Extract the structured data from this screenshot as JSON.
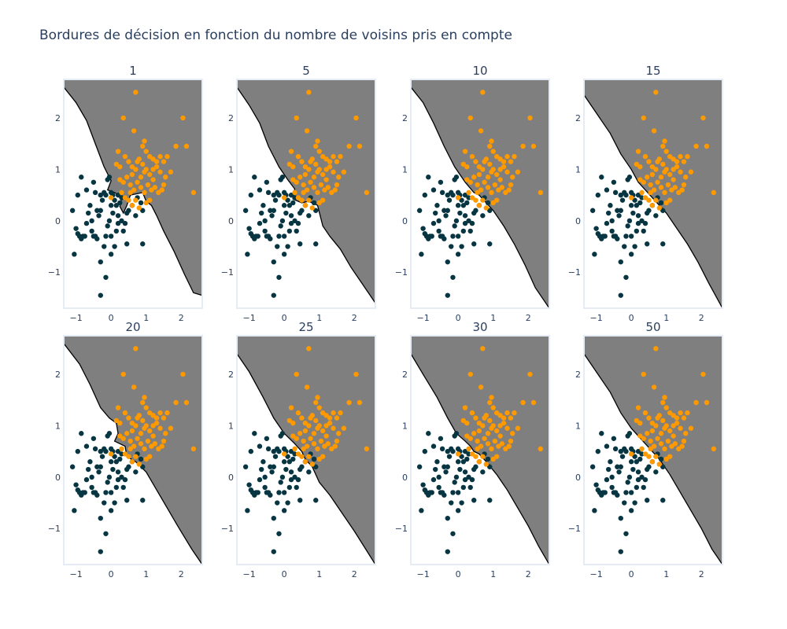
{
  "title": "Bordures de décision en fonction du nombre de voisins pris en compte",
  "colors": {
    "region": "#7f7f7f",
    "boundary": "#000000",
    "class0": "#073642",
    "class1": "#ff9900",
    "axis_frame": "#e5ecf6",
    "text": "#2a3f5f"
  },
  "chart_data": {
    "type": "scatter",
    "xlim": [
      -1.35,
      2.6
    ],
    "ylim": [
      -1.7,
      2.75
    ],
    "x_ticks": [
      -1,
      0,
      1,
      2
    ],
    "y_ticks": [
      -1,
      0,
      1,
      2
    ],
    "x_tick_labels": [
      "−1",
      "0",
      "1",
      "2"
    ],
    "y_tick_labels": [
      "−1",
      "0",
      "1",
      "2"
    ],
    "grid": false,
    "panels": [
      {
        "title": "1",
        "k": 1,
        "boundary": [
          [
            -1.35,
            2.6
          ],
          [
            -1.0,
            2.3
          ],
          [
            -0.7,
            1.95
          ],
          [
            -0.45,
            1.5
          ],
          [
            -0.2,
            1.05
          ],
          [
            0.0,
            0.78
          ],
          [
            -0.1,
            0.6
          ],
          [
            0.1,
            0.55
          ],
          [
            0.3,
            0.45
          ],
          [
            0.25,
            0.28
          ],
          [
            0.35,
            0.15
          ],
          [
            0.45,
            0.3
          ],
          [
            0.55,
            0.5
          ],
          [
            0.9,
            0.55
          ],
          [
            1.0,
            0.38
          ],
          [
            1.15,
            0.3
          ],
          [
            1.3,
            0.1
          ],
          [
            1.5,
            -0.2
          ],
          [
            1.8,
            -0.6
          ],
          [
            2.1,
            -1.05
          ],
          [
            2.35,
            -1.4
          ],
          [
            2.6,
            -1.45
          ]
        ]
      },
      {
        "title": "5",
        "k": 5,
        "boundary": [
          [
            -1.35,
            2.6
          ],
          [
            -1.0,
            2.25
          ],
          [
            -0.7,
            1.9
          ],
          [
            -0.45,
            1.45
          ],
          [
            -0.15,
            1.05
          ],
          [
            0.1,
            0.8
          ],
          [
            0.3,
            0.62
          ],
          [
            0.25,
            0.42
          ],
          [
            0.5,
            0.35
          ],
          [
            0.7,
            0.38
          ],
          [
            0.95,
            0.3
          ],
          [
            1.1,
            -0.1
          ],
          [
            1.3,
            -0.3
          ],
          [
            1.6,
            -0.55
          ],
          [
            1.9,
            -0.9
          ],
          [
            2.2,
            -1.2
          ],
          [
            2.6,
            -1.6
          ]
        ]
      },
      {
        "title": "10",
        "k": 10,
        "boundary": [
          [
            -1.35,
            2.6
          ],
          [
            -1.0,
            2.3
          ],
          [
            -0.7,
            1.9
          ],
          [
            -0.4,
            1.45
          ],
          [
            -0.1,
            1.05
          ],
          [
            0.2,
            0.75
          ],
          [
            0.45,
            0.55
          ],
          [
            0.6,
            0.5
          ],
          [
            0.8,
            0.35
          ],
          [
            1.0,
            0.2
          ],
          [
            1.3,
            -0.1
          ],
          [
            1.6,
            -0.45
          ],
          [
            1.9,
            -0.85
          ],
          [
            2.2,
            -1.3
          ],
          [
            2.6,
            -1.7
          ]
        ]
      },
      {
        "title": "15",
        "k": 15,
        "boundary": [
          [
            -1.35,
            2.45
          ],
          [
            -1.0,
            2.1
          ],
          [
            -0.6,
            1.7
          ],
          [
            -0.3,
            1.3
          ],
          [
            0.0,
            1.0
          ],
          [
            0.2,
            0.75
          ],
          [
            0.4,
            0.6
          ],
          [
            0.6,
            0.45
          ],
          [
            0.8,
            0.3
          ],
          [
            1.0,
            0.15
          ],
          [
            1.3,
            -0.15
          ],
          [
            1.6,
            -0.45
          ],
          [
            1.9,
            -0.8
          ],
          [
            2.2,
            -1.2
          ],
          [
            2.6,
            -1.7
          ]
        ]
      },
      {
        "title": "20",
        "k": 20,
        "boundary": [
          [
            -1.35,
            2.6
          ],
          [
            -0.9,
            2.2
          ],
          [
            -0.6,
            1.8
          ],
          [
            -0.3,
            1.35
          ],
          [
            -0.05,
            1.15
          ],
          [
            0.15,
            1.05
          ],
          [
            0.2,
            0.85
          ],
          [
            0.1,
            0.7
          ],
          [
            0.4,
            0.6
          ],
          [
            0.45,
            0.4
          ],
          [
            0.7,
            0.3
          ],
          [
            1.0,
            0.1
          ],
          [
            1.3,
            -0.25
          ],
          [
            1.6,
            -0.6
          ],
          [
            1.9,
            -0.95
          ],
          [
            2.3,
            -1.4
          ],
          [
            2.6,
            -1.7
          ]
        ]
      },
      {
        "title": "25",
        "k": 25,
        "boundary": [
          [
            -1.35,
            2.4
          ],
          [
            -1.0,
            2.05
          ],
          [
            -0.6,
            1.55
          ],
          [
            -0.3,
            1.15
          ],
          [
            0.0,
            0.85
          ],
          [
            0.3,
            0.65
          ],
          [
            0.5,
            0.5
          ],
          [
            0.6,
            0.35
          ],
          [
            0.8,
            0.2
          ],
          [
            1.0,
            -0.1
          ],
          [
            1.3,
            -0.35
          ],
          [
            1.6,
            -0.65
          ],
          [
            2.0,
            -1.05
          ],
          [
            2.6,
            -1.7
          ]
        ]
      },
      {
        "title": "30",
        "k": 30,
        "boundary": [
          [
            -1.35,
            2.4
          ],
          [
            -1.0,
            2.0
          ],
          [
            -0.6,
            1.55
          ],
          [
            -0.3,
            1.15
          ],
          [
            -0.05,
            0.85
          ],
          [
            0.2,
            0.7
          ],
          [
            0.35,
            0.6
          ],
          [
            0.45,
            0.5
          ],
          [
            0.6,
            0.45
          ],
          [
            0.8,
            0.3
          ],
          [
            1.1,
            0.05
          ],
          [
            1.4,
            -0.25
          ],
          [
            1.7,
            -0.6
          ],
          [
            2.0,
            -0.95
          ],
          [
            2.3,
            -1.35
          ],
          [
            2.6,
            -1.7
          ]
        ]
      },
      {
        "title": "50",
        "k": 50,
        "boundary": [
          [
            -1.35,
            2.4
          ],
          [
            -1.0,
            2.05
          ],
          [
            -0.6,
            1.65
          ],
          [
            -0.3,
            1.25
          ],
          [
            0.0,
            0.95
          ],
          [
            0.2,
            0.8
          ],
          [
            0.4,
            0.65
          ],
          [
            0.6,
            0.5
          ],
          [
            0.8,
            0.35
          ],
          [
            1.1,
            0.05
          ],
          [
            1.4,
            -0.3
          ],
          [
            1.7,
            -0.65
          ],
          [
            2.0,
            -1.0
          ],
          [
            2.3,
            -1.4
          ],
          [
            2.6,
            -1.7
          ]
        ]
      }
    ],
    "series": [
      {
        "class": 0,
        "points": [
          [
            -1.05,
            -0.65
          ],
          [
            -1.1,
            0.2
          ],
          [
            -1.0,
            -0.15
          ],
          [
            -0.95,
            -0.25
          ],
          [
            -0.9,
            -0.3
          ],
          [
            -0.85,
            -0.35
          ],
          [
            -0.8,
            -0.3
          ],
          [
            -0.75,
            -0.3
          ],
          [
            -0.95,
            0.5
          ],
          [
            -0.85,
            0.85
          ],
          [
            -0.7,
            0.6
          ],
          [
            -0.6,
            0.3
          ],
          [
            -0.55,
            -0.2
          ],
          [
            -0.5,
            -0.3
          ],
          [
            -0.45,
            -0.3
          ],
          [
            -0.4,
            0.2
          ],
          [
            -0.35,
            0.1
          ],
          [
            -0.3,
            0.2
          ],
          [
            -0.25,
            0.4
          ],
          [
            -0.3,
            -0.8
          ],
          [
            -0.4,
            -0.35
          ],
          [
            -0.3,
            -1.45
          ],
          [
            -0.15,
            -1.1
          ],
          [
            -0.2,
            -0.5
          ],
          [
            -0.15,
            -0.3
          ],
          [
            -0.1,
            -0.1
          ],
          [
            -0.05,
            0.0
          ],
          [
            0.0,
            0.3
          ],
          [
            0.0,
            0.55
          ],
          [
            0.05,
            0.5
          ],
          [
            0.1,
            0.4
          ],
          [
            0.15,
            0.3
          ],
          [
            0.15,
            -0.2
          ],
          [
            0.2,
            0.1
          ],
          [
            0.1,
            -0.5
          ],
          [
            0.0,
            -0.65
          ],
          [
            -0.05,
            0.85
          ],
          [
            -0.1,
            0.8
          ],
          [
            -0.2,
            0.55
          ],
          [
            -0.3,
            0.5
          ],
          [
            -0.45,
            0.55
          ],
          [
            -0.5,
            0.75
          ],
          [
            0.3,
            0.45
          ],
          [
            0.35,
            -0.2
          ],
          [
            0.45,
            -0.45
          ],
          [
            0.2,
            0.5
          ],
          [
            0.25,
            0.35
          ],
          [
            0.5,
            0.2
          ],
          [
            0.6,
            0.3
          ],
          [
            0.7,
            0.1
          ],
          [
            0.9,
            0.2
          ],
          [
            0.85,
            0.35
          ],
          [
            0.75,
            0.45
          ],
          [
            0.2,
            -0.05
          ],
          [
            -0.15,
            0.5
          ],
          [
            -0.65,
            0.15
          ],
          [
            -0.7,
            -0.05
          ],
          [
            -0.55,
            0.0
          ],
          [
            0.05,
            0.15
          ],
          [
            0.0,
            -0.3
          ],
          [
            0.3,
            0.0
          ],
          [
            0.45,
            0.15
          ],
          [
            0.4,
            -0.05
          ],
          [
            0.9,
            -0.45
          ]
        ]
      },
      {
        "class": 1,
        "points": [
          [
            0.7,
            2.5
          ],
          [
            0.35,
            2.0
          ],
          [
            2.05,
            2.0
          ],
          [
            0.65,
            1.75
          ],
          [
            0.95,
            1.55
          ],
          [
            0.9,
            1.45
          ],
          [
            1.0,
            1.35
          ],
          [
            1.1,
            1.25
          ],
          [
            1.2,
            1.2
          ],
          [
            1.3,
            1.15
          ],
          [
            1.4,
            1.25
          ],
          [
            1.5,
            1.15
          ],
          [
            1.85,
            1.45
          ],
          [
            2.15,
            1.45
          ],
          [
            0.2,
            1.35
          ],
          [
            0.15,
            1.1
          ],
          [
            0.25,
            1.05
          ],
          [
            0.4,
            1.25
          ],
          [
            0.5,
            1.15
          ],
          [
            0.6,
            1.05
          ],
          [
            0.7,
            1.0
          ],
          [
            0.8,
            1.2
          ],
          [
            0.9,
            1.1
          ],
          [
            1.0,
            1.0
          ],
          [
            1.1,
            0.9
          ],
          [
            1.2,
            0.8
          ],
          [
            1.3,
            1.05
          ],
          [
            1.4,
            0.95
          ],
          [
            1.55,
            0.85
          ],
          [
            1.7,
            0.95
          ],
          [
            0.35,
            0.75
          ],
          [
            0.45,
            0.85
          ],
          [
            0.55,
            0.7
          ],
          [
            0.65,
            0.6
          ],
          [
            0.75,
            0.75
          ],
          [
            0.85,
            0.65
          ],
          [
            0.95,
            0.55
          ],
          [
            1.05,
            0.7
          ],
          [
            1.15,
            0.6
          ],
          [
            1.35,
            0.55
          ],
          [
            1.45,
            0.6
          ],
          [
            2.35,
            0.55
          ],
          [
            0.3,
            0.55
          ],
          [
            0.4,
            0.45
          ],
          [
            0.5,
            0.4
          ],
          [
            0.6,
            0.3
          ],
          [
            0.8,
            0.25
          ],
          [
            0.55,
            0.55
          ],
          [
            1.0,
            0.35
          ],
          [
            1.1,
            0.4
          ],
          [
            0.25,
            0.8
          ],
          [
            0.6,
            0.9
          ],
          [
            1.2,
            1.0
          ],
          [
            0.75,
            1.15
          ],
          [
            0.95,
            0.95
          ],
          [
            0.85,
            0.85
          ],
          [
            1.25,
            0.65
          ],
          [
            1.5,
            0.7
          ],
          [
            0.0,
            0.45
          ],
          [
            1.6,
            1.25
          ],
          [
            0.7,
            0.4
          ]
        ]
      }
    ]
  }
}
